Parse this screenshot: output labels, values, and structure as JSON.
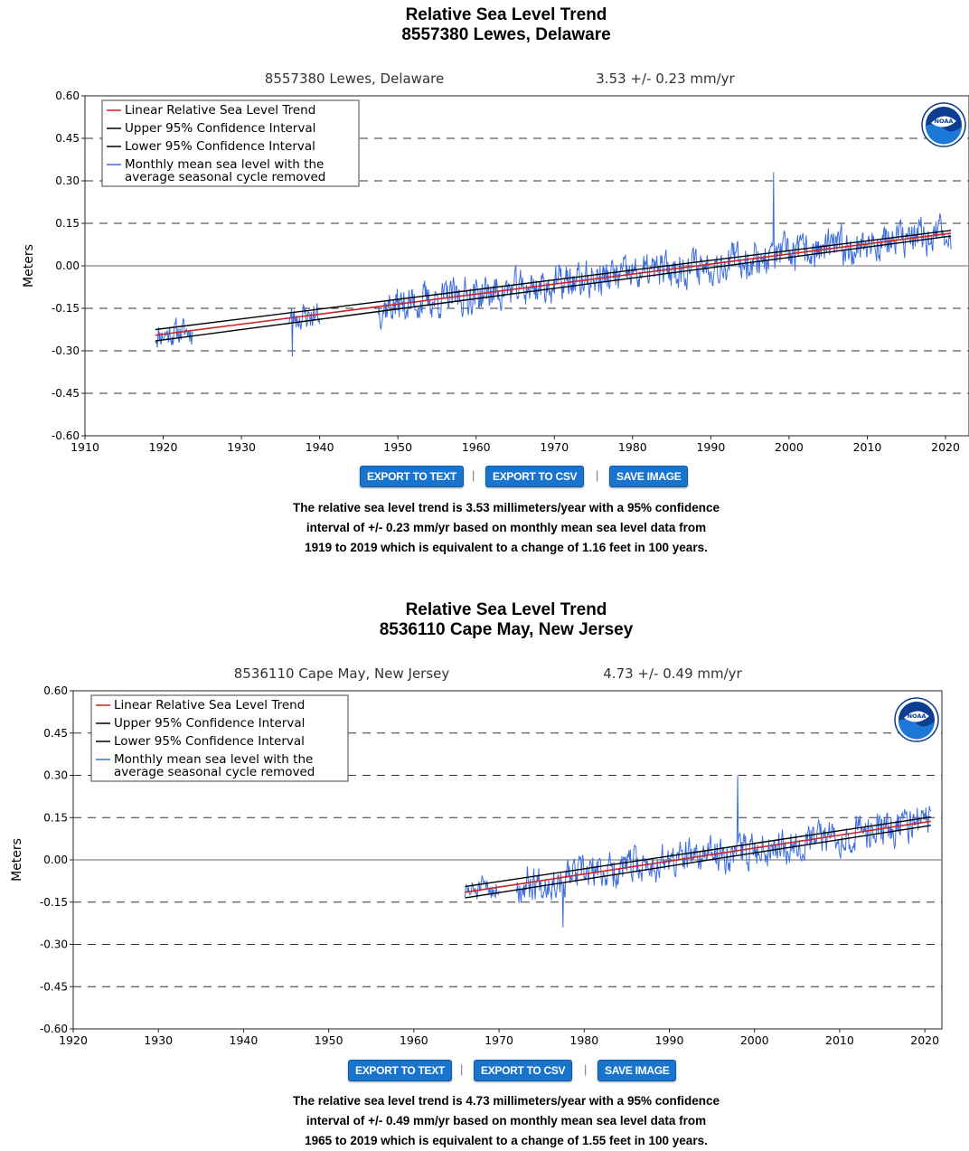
{
  "chart_data": [
    {
      "type": "line",
      "title": "Relative Sea Level Trend",
      "subtitle": "8557380 Lewes, Delaware",
      "station_label": "8557380 Lewes, Delaware",
      "trend_label": "3.53 +/-  0.23 mm/yr",
      "ylabel": "Meters",
      "xlabel": "",
      "xlim": [
        1910,
        2023
      ],
      "ylim": [
        -0.6,
        0.6
      ],
      "x_ticks": [
        "1910",
        "1920",
        "1930",
        "1940",
        "1950",
        "1960",
        "1970",
        "1980",
        "1990",
        "2000",
        "2010",
        "2020"
      ],
      "y_ticks": [
        "0.60",
        "0.45",
        "0.30",
        "0.15",
        "0.00",
        "-0.15",
        "-0.30",
        "-0.45",
        "-0.60"
      ],
      "grid": "dashed horizontal",
      "legend_position": "top-left",
      "legend": [
        {
          "label": "Linear Relative Sea Level Trend",
          "color": "#cc2222"
        },
        {
          "label": "Upper 95% Confidence Interval",
          "color": "#000000"
        },
        {
          "label": "Lower 95% Confidence Interval",
          "color": "#000000"
        },
        {
          "label": "Monthly mean sea level with the",
          "label2": "average seasonal cycle removed",
          "color": "#3d6de0"
        }
      ],
      "series": [
        {
          "kind": "trend",
          "x": [
            1919,
            2020.7
          ],
          "y": [
            -0.245,
            0.115
          ]
        },
        {
          "kind": "upper",
          "x": [
            1919,
            2020.7
          ],
          "y": [
            -0.225,
            0.125
          ]
        },
        {
          "kind": "lower",
          "x": [
            1919,
            2020.7
          ],
          "y": [
            -0.265,
            0.105
          ]
        },
        {
          "kind": "monthly",
          "segments": [
            {
              "x": [
                1919.0,
                1923.8
              ],
              "trend": [
                -0.245,
                -0.228
              ],
              "noise": 0.04,
              "seed": 11
            },
            {
              "x": [
                1936.0,
                1940.0
              ],
              "trend": [
                -0.185,
                -0.172
              ],
              "noise": 0.04,
              "seed": 23
            },
            {
              "x": [
                1947.5,
                2020.7
              ],
              "trend": [
                -0.146,
                0.115
              ],
              "noise": 0.055,
              "seed": 37
            }
          ]
        }
      ],
      "spikes": [
        {
          "x": 1998.0,
          "y": 0.33
        },
        {
          "x": 1936.5,
          "y": -0.32
        }
      ]
    },
    {
      "type": "line",
      "title": "Relative Sea Level Trend",
      "subtitle": "8536110 Cape May, New Jersey",
      "station_label": "8536110 Cape May, New Jersey",
      "trend_label": "4.73 +/-  0.49 mm/yr",
      "ylabel": "Meters",
      "xlabel": "",
      "xlim": [
        1920,
        2022
      ],
      "ylim": [
        -0.6,
        0.6
      ],
      "x_ticks": [
        "1920",
        "1930",
        "1940",
        "1950",
        "1960",
        "1970",
        "1980",
        "1990",
        "2000",
        "2010",
        "2020"
      ],
      "y_ticks": [
        "0.60",
        "0.45",
        "0.30",
        "0.15",
        "0.00",
        "-0.15",
        "-0.30",
        "-0.45",
        "-0.60"
      ],
      "grid": "dashed horizontal",
      "legend_position": "top-left",
      "legend": [
        {
          "label": "Linear Relative Sea Level Trend",
          "color": "#cc2222"
        },
        {
          "label": "Upper 95% Confidence Interval",
          "color": "#000000"
        },
        {
          "label": "Lower 95% Confidence Interval",
          "color": "#000000"
        },
        {
          "label": "Monthly mean sea level with the",
          "label2": "average seasonal cycle removed",
          "color": "#3d6de0"
        }
      ],
      "series": [
        {
          "kind": "trend",
          "x": [
            1966,
            2020.7
          ],
          "y": [
            -0.115,
            0.137
          ]
        },
        {
          "kind": "upper",
          "x": [
            1966,
            2020.7
          ],
          "y": [
            -0.095,
            0.152
          ]
        },
        {
          "kind": "lower",
          "x": [
            1966,
            2020.7
          ],
          "y": [
            -0.135,
            0.122
          ]
        },
        {
          "kind": "monthly",
          "segments": [
            {
              "x": [
                1966.0,
                1970.0
              ],
              "trend": [
                -0.115,
                -0.097
              ],
              "noise": 0.035,
              "seed": 51
            },
            {
              "x": [
                1972.0,
                2020.7
              ],
              "trend": [
                -0.088,
                0.137
              ],
              "noise": 0.055,
              "seed": 67
            }
          ]
        }
      ],
      "spikes": [
        {
          "x": 1998.0,
          "y": 0.3
        },
        {
          "x": 1977.5,
          "y": -0.24
        }
      ]
    }
  ],
  "buttons": {
    "export_text": "EXPORT TO TEXT",
    "export_csv": "EXPORT TO CSV",
    "save_image": "SAVE IMAGE",
    "separator": "|"
  },
  "logo": {
    "text": "NOAA"
  },
  "description1": {
    "line1": "The relative sea level trend is 3.53 millimeters/year with a 95% confidence",
    "line2": "interval of +/- 0.23 mm/yr based on monthly mean sea level data from",
    "line3": "1919 to 2019 which is equivalent to a change of 1.16 feet in 100 years."
  },
  "description2": {
    "line1": "The relative sea level trend is 4.73 millimeters/year with a 95% confidence",
    "line2": "interval of +/- 0.49 mm/yr based on monthly mean sea level data from",
    "line3": "1965 to 2019 which is equivalent to a change of 1.55 feet in 100 years."
  }
}
